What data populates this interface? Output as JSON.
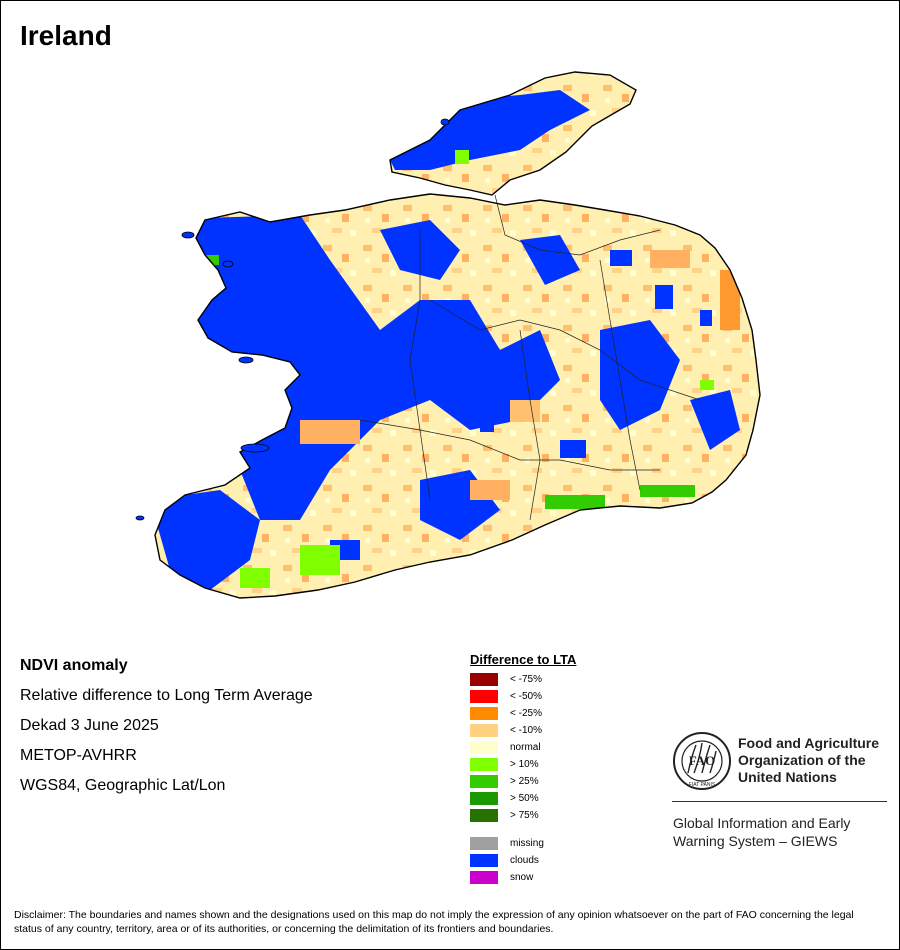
{
  "title": "Ireland",
  "product": {
    "name": "NDVI anomaly",
    "description": "Relative difference to Long Term Average",
    "period": "Dekad 3 June 2025",
    "sensor": "METOP-AVHRR",
    "projection": "WGS84, Geographic Lat/Lon"
  },
  "legend": {
    "title": "Difference to LTA",
    "items": [
      {
        "label": "< -75%",
        "color": "#990000"
      },
      {
        "label": "< -50%",
        "color": "#ff0000"
      },
      {
        "label": "< -25%",
        "color": "#ff8c00"
      },
      {
        "label": "< -10%",
        "color": "#ffd27f"
      },
      {
        "label": "normal",
        "color": "#ffffcc"
      },
      {
        "label": "> 10%",
        "color": "#7fff00"
      },
      {
        "label": "> 25%",
        "color": "#33cc00"
      },
      {
        "label": "> 50%",
        "color": "#1a9900"
      },
      {
        "label": "> 75%",
        "color": "#267300"
      }
    ],
    "special": [
      {
        "label": "missing",
        "color": "#a0a0a0"
      },
      {
        "label": "clouds",
        "color": "#0033ff"
      },
      {
        "label": "snow",
        "color": "#cc00cc"
      }
    ]
  },
  "logo": {
    "acronym": "FAO",
    "motto": "FIAT PANIS",
    "org_lines": [
      "Food and Agriculture",
      "Organization of the",
      "United Nations"
    ]
  },
  "giews": [
    "Global Information and Early",
    "Warning System – GIEWS"
  ],
  "disclaimer": "Disclaimer: The boundaries and names shown and the designations used on this map do not imply the expression of any opinion whatsoever on the part of FAO concerning the legal status of any country, territory, area or of its authorities, or concerning the delimitation of its frontiers and boundaries."
}
